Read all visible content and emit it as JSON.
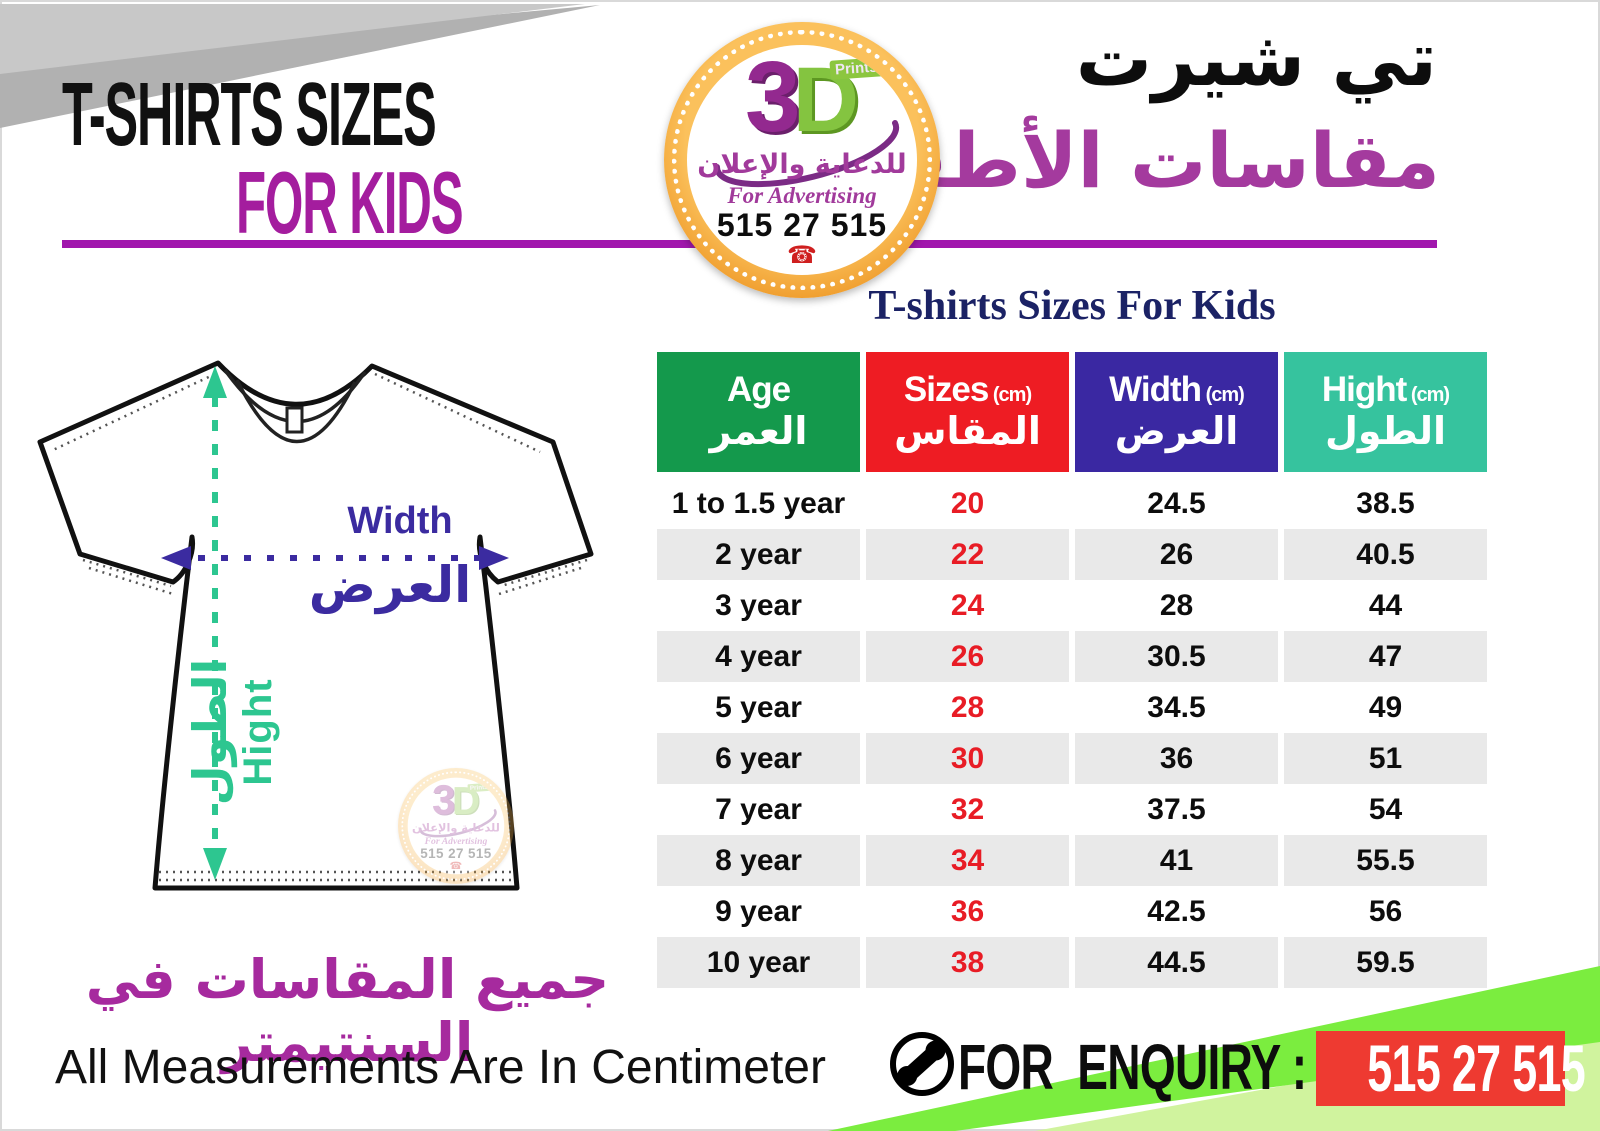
{
  "header": {
    "title_line1": "T-SHIRTS SIZES",
    "title_line2": "FOR KIDS",
    "title_ar_line1": "تي شيرت",
    "title_ar_line2": "مقاسات الأطفال"
  },
  "logo": {
    "brand_3": "3",
    "brand_d": "D",
    "prints": "Prints",
    "tagline_ar": "للدعاية والإعلان",
    "tagline_en": "For Advertising",
    "phone": "515 27 515",
    "phone_glyph": "☎"
  },
  "diagram": {
    "width_label_en": "Width",
    "width_label_ar": "العرض",
    "height_label_ar": "الطول",
    "height_label_en": "Hight"
  },
  "table": {
    "title": "T-shirts Sizes For Kids",
    "columns": [
      {
        "en": "Age",
        "unit": "",
        "ar": "العمر",
        "color": "#14994c"
      },
      {
        "en": "Sizes",
        "unit": "(cm)",
        "ar": "المقاس",
        "color": "#ee1c23"
      },
      {
        "en": "Width",
        "unit": "(cm)",
        "ar": "العرض",
        "color": "#3a28a2"
      },
      {
        "en": "Hight",
        "unit": "(cm)",
        "ar": "الطول",
        "color": "#36c39e"
      }
    ],
    "rows": [
      [
        "1 to 1.5 year",
        "20",
        "24.5",
        "38.5"
      ],
      [
        "2 year",
        "22",
        "26",
        "40.5"
      ],
      [
        "3 year",
        "24",
        "28",
        "44"
      ],
      [
        "4 year",
        "26",
        "30.5",
        "47"
      ],
      [
        "5 year",
        "28",
        "34.5",
        "49"
      ],
      [
        "6 year",
        "30",
        "36",
        "51"
      ],
      [
        "7 year",
        "32",
        "37.5",
        "54"
      ],
      [
        "8 year",
        "34",
        "41",
        "55.5"
      ],
      [
        "9 year",
        "36",
        "42.5",
        "56"
      ],
      [
        "10 year",
        "38",
        "44.5",
        "59.5"
      ]
    ]
  },
  "footer": {
    "note_ar": "جميع المقاسات في السنتيمتر",
    "note_en": "All Measurements Are In Centimeter",
    "enquiry_label": "FOR  ENQUIRY :",
    "enquiry_number": "515 27 515"
  },
  "colors": {
    "accent_purple": "#a41d9e",
    "divider_purple": "#a117ad",
    "title_navy": "#1b2265",
    "arrow_indigo": "#3b2ba0",
    "arrow_teal": "#2dc690",
    "wedge_gray_light": "#c8c8c8",
    "wedge_gray_dark": "#b1b1b1",
    "band_green_bright": "#7bed3f",
    "band_green_pale": "#d0f39e",
    "enquiry_red": "#ee3a31",
    "number_red": "#e81c25",
    "row_shade": "#e9e9e9"
  }
}
